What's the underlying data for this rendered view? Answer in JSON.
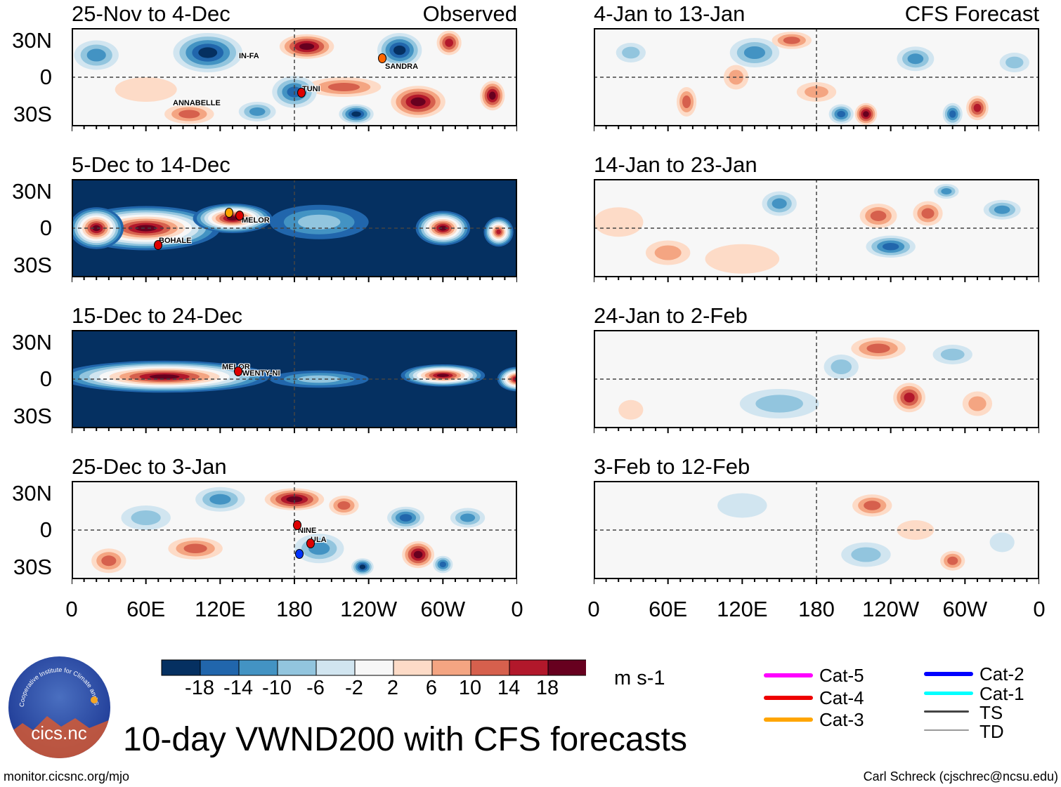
{
  "panels": {
    "left": [
      {
        "title": "25-Nov to 4-Dec",
        "tag": "Observed"
      },
      {
        "title": "5-Dec to 14-Dec"
      },
      {
        "title": "15-Dec to 24-Dec"
      },
      {
        "title": "25-Dec to 3-Jan"
      }
    ],
    "right": [
      {
        "title": "4-Jan to 13-Jan",
        "tag": "CFS Forecast"
      },
      {
        "title": "14-Jan to 23-Jan"
      },
      {
        "title": "24-Jan to 2-Feb"
      },
      {
        "title": "3-Feb to 12-Feb"
      }
    ]
  },
  "lat_labels": [
    "30N",
    "0",
    "30S"
  ],
  "lon_labels": [
    "0",
    "60E",
    "120E",
    "180",
    "120W",
    "60W",
    "0"
  ],
  "storms": {
    "p1": [
      "IN-FA",
      "SANDRA",
      "TUNI",
      "ANNABELLE"
    ],
    "p2": [
      "MELOR",
      "BOHALE"
    ],
    "p3": [
      "MELOR",
      "TWENTY-NI"
    ],
    "p4": [
      "NINE",
      "ULA"
    ]
  },
  "colorbar": {
    "labels": [
      "-18",
      "-14",
      "-10",
      "-6",
      "-2",
      "2",
      "6",
      "10",
      "14",
      "18"
    ],
    "units": "m s-1",
    "colors": [
      "#053061",
      "#2166ac",
      "#4393c3",
      "#92c5de",
      "#d1e5f0",
      "#f7f7f7",
      "#fddbc7",
      "#f4a582",
      "#d6604d",
      "#b2182b",
      "#67001f"
    ]
  },
  "legend": [
    {
      "label": "Cat-5",
      "color": "#ff00ff"
    },
    {
      "label": "Cat-4",
      "color": "#ee0000"
    },
    {
      "label": "Cat-3",
      "color": "#ffa500"
    },
    {
      "label": "Cat-2",
      "color": "#0000ff"
    },
    {
      "label": "Cat-1",
      "color": "#00ffff"
    },
    {
      "label": "TS",
      "color": "#444444"
    },
    {
      "label": "TD",
      "color": "#999999"
    }
  ],
  "title": "10-day VWND200 with CFS forecasts",
  "logo": {
    "text": "cics.nc",
    "ring": "Cooperative Institute for Climate and Satellites"
  },
  "footer": {
    "url": "monitor.cicsnc.org/mjo",
    "credit": "Carl Schreck (cjschrec@ncsu.edu)"
  }
}
